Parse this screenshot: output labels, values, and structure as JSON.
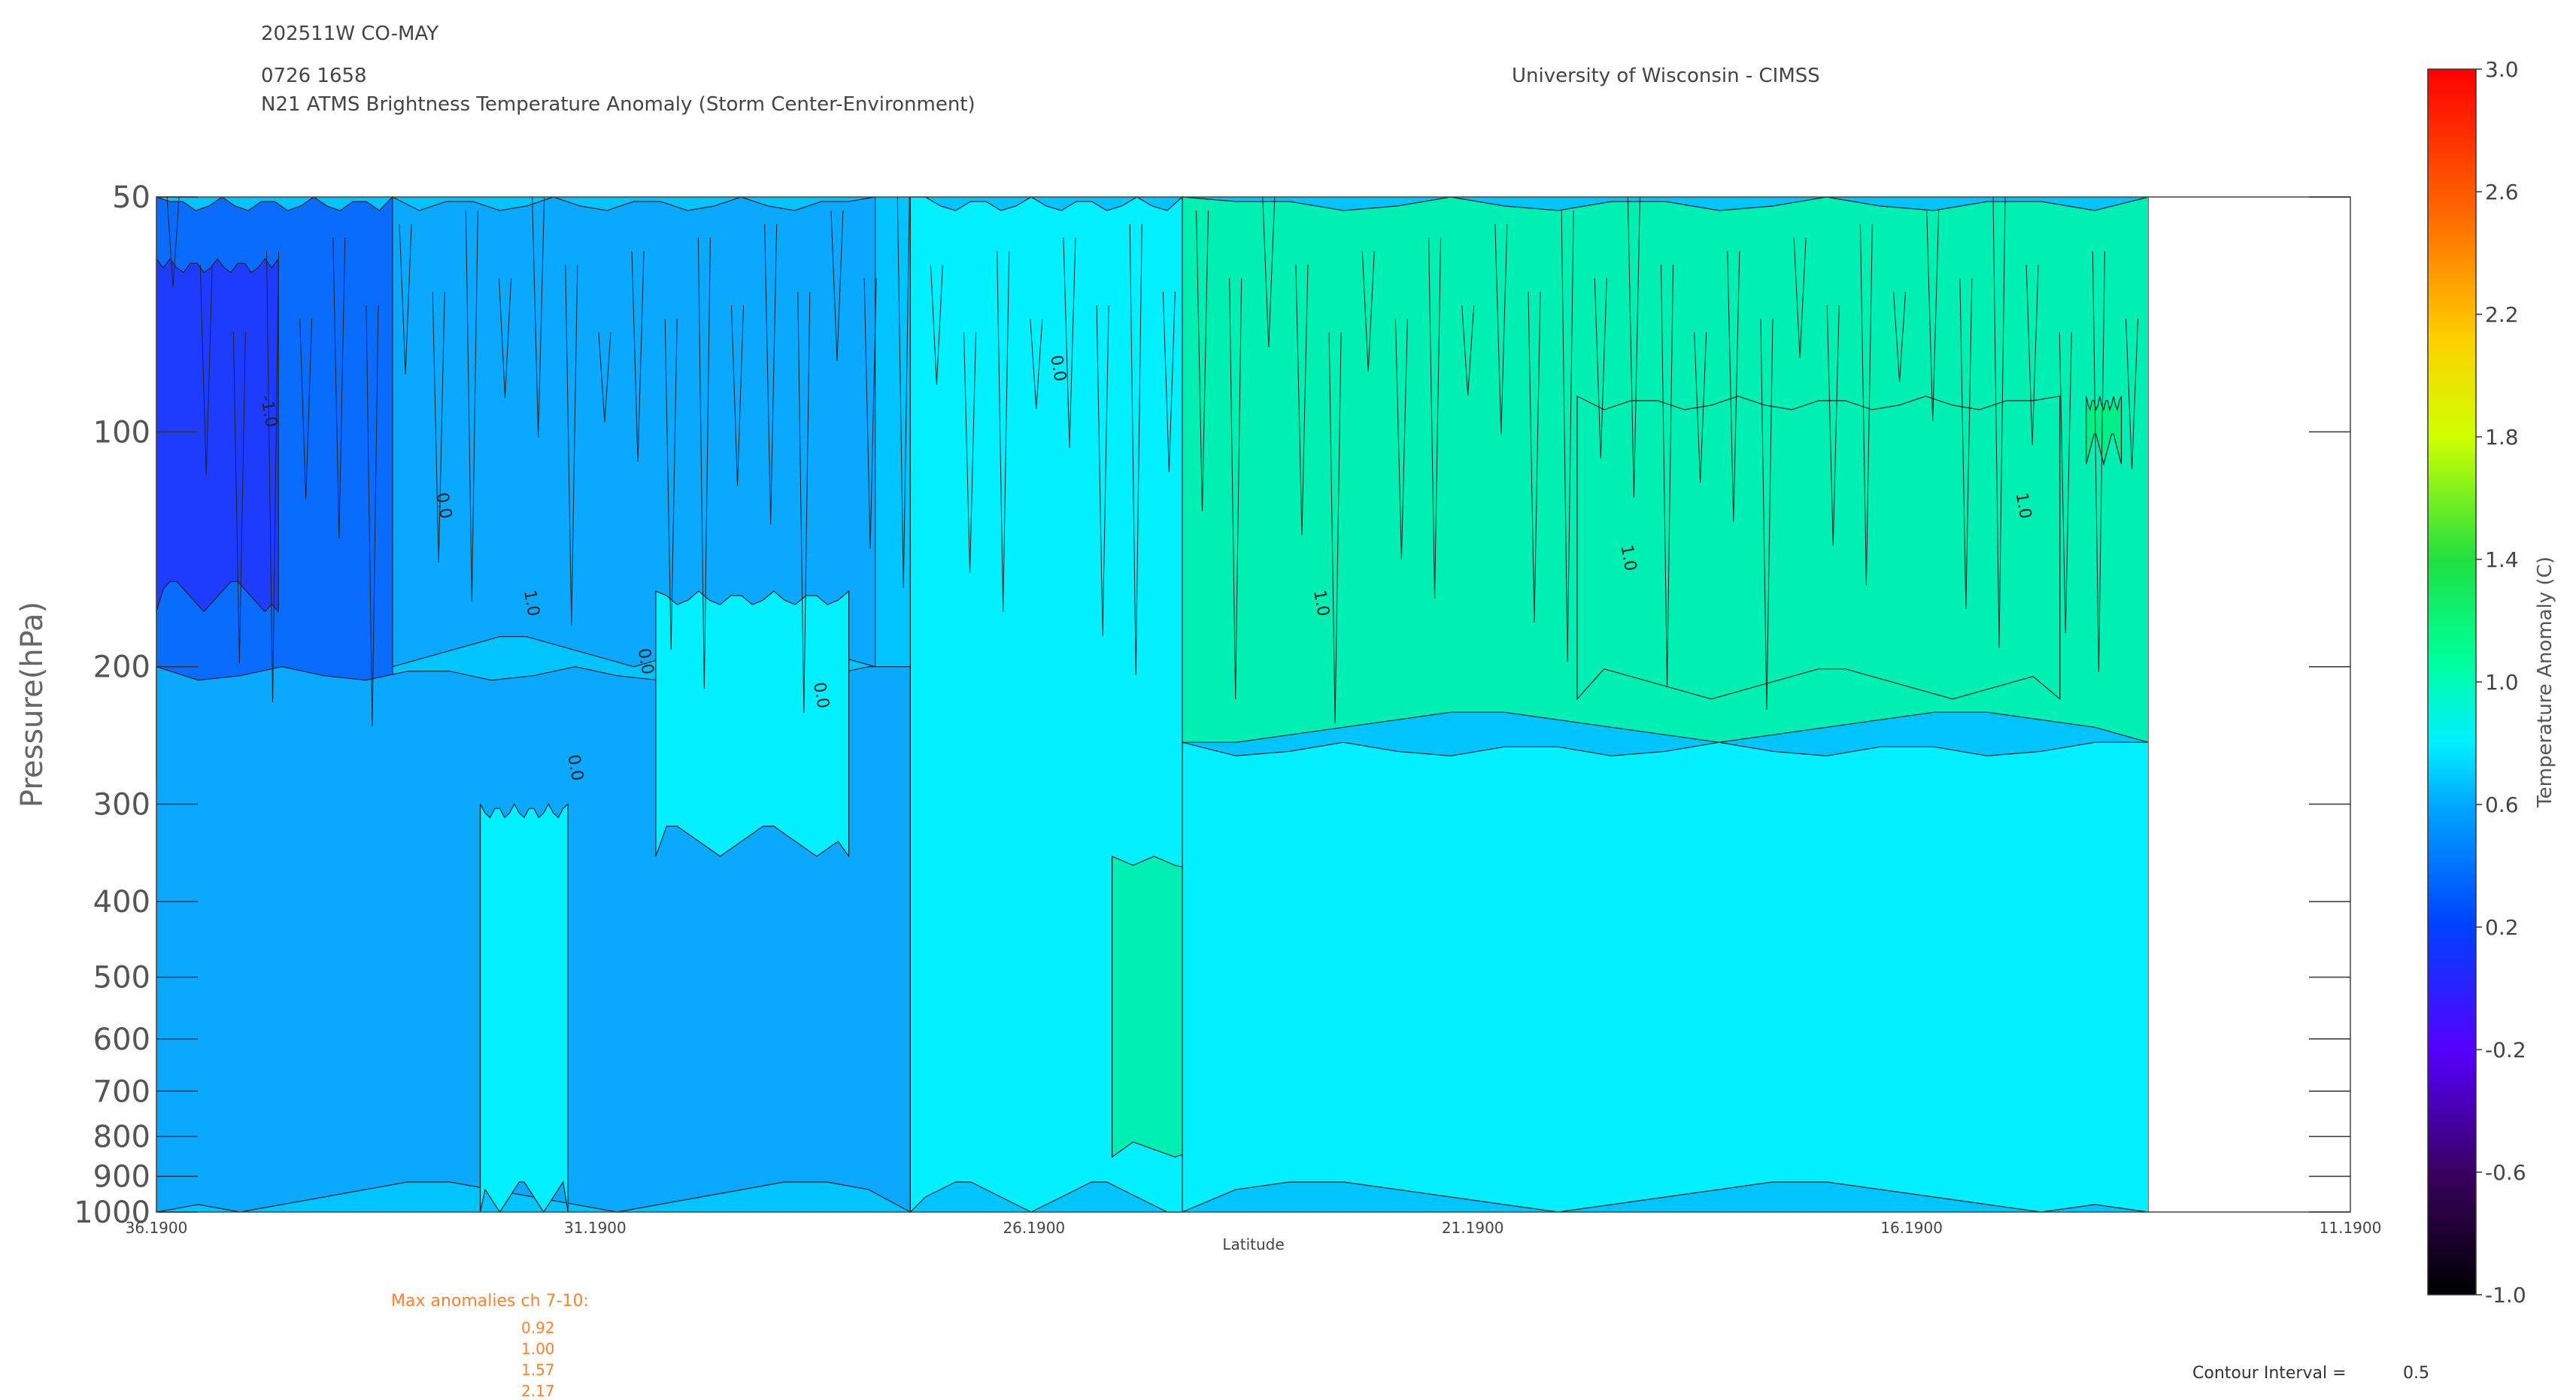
{
  "header": {
    "storm_id": "202511W CO-MAY",
    "datetime": "0726 1658",
    "product": "N21 ATMS Brightness Temperature Anomaly (Storm Center-Environment)",
    "institution": "University of Wisconsin - CIMSS"
  },
  "colors": {
    "c_lt_m02": "#000000",
    "c_m02_m00": "#1e3cff",
    "c_00_02": "#0a6cff",
    "c_02_04": "#0aa8ff",
    "c_04_06": "#00c4ff",
    "c_06_08": "#00f0ff",
    "c_08_10": "#00f0b4",
    "c_10_12": "#00f088",
    "line": "#222222"
  },
  "chart_data": {
    "type": "heatmap",
    "xlabel": "Latitude",
    "ylabel": "Pressure(hPa)",
    "x_ticks": [
      "36.1900",
      "31.1900",
      "26.1900",
      "21.1900",
      "16.1900",
      "11.1900"
    ],
    "x_tick_values": [
      36.19,
      31.19,
      26.19,
      21.19,
      16.19,
      11.19
    ],
    "xlim": [
      36.19,
      11.19
    ],
    "data_xlim": [
      36.19,
      13.49
    ],
    "y_ticks": [
      "50",
      "100",
      "200",
      "300",
      "400",
      "500",
      "600",
      "700",
      "800",
      "900",
      "1000"
    ],
    "y_tick_values": [
      50,
      100,
      200,
      300,
      400,
      500,
      600,
      700,
      800,
      900,
      1000
    ],
    "ylim": [
      50,
      1000
    ],
    "y_scale": "log",
    "contour_interval_label": "Contour Interval =",
    "contour_interval": "0.5",
    "contour_labels": [
      "0.0",
      "-1.0",
      "1.0"
    ],
    "regions": [
      {
        "x": [
          36.19,
          33.5
        ],
        "y": [
          50,
          280
        ],
        "value": 0.2
      },
      {
        "x": [
          36.19,
          34.8
        ],
        "y": [
          60,
          170
        ],
        "value": 0.1
      },
      {
        "x": [
          33.5,
          28.0
        ],
        "y": [
          50,
          200
        ],
        "value": 0.4
      },
      {
        "x": [
          36.19,
          27.6
        ],
        "y": [
          200,
          1000
        ],
        "value": 0.4
      },
      {
        "x": [
          32.5,
          31.5
        ],
        "y": [
          300,
          1000
        ],
        "value": 0.6
      },
      {
        "x": [
          30.5,
          28.3
        ],
        "y": [
          160,
          350
        ],
        "value": 0.6
      },
      {
        "x": [
          27.6,
          24.5
        ],
        "y": [
          50,
          1000
        ],
        "value": 0.6
      },
      {
        "x": [
          24.5,
          13.49
        ],
        "y": [
          50,
          250
        ],
        "value": 0.8
      },
      {
        "x": [
          25.3,
          21.0
        ],
        "y": [
          350,
          850
        ],
        "value": 0.8
      },
      {
        "x": [
          20.0,
          14.5
        ],
        "y": [
          90,
          220
        ],
        "value": 0.9
      },
      {
        "x": [
          24.5,
          13.49
        ],
        "y": [
          250,
          1000
        ],
        "value": 0.6
      },
      {
        "x": [
          14.2,
          13.8
        ],
        "y": [
          90,
          110
        ],
        "value": 1.1
      }
    ]
  },
  "colorbar": {
    "label": "Temperature Anomaly (C)",
    "ticks": [
      "3.0",
      "2.6",
      "2.2",
      "1.8",
      "1.4",
      "1.0",
      "0.6",
      "0.2",
      "-0.2",
      "-0.6",
      "-1.0"
    ],
    "tick_values": [
      3.0,
      2.6,
      2.2,
      1.8,
      1.4,
      1.0,
      0.6,
      0.2,
      -0.2,
      -0.6,
      -1.0
    ],
    "range": [
      -1.0,
      3.0
    ]
  },
  "max_anomalies": {
    "title": "Max anomalies ch 7-10:",
    "values": [
      "0.92",
      "1.00",
      "1.57",
      "2.17"
    ]
  }
}
